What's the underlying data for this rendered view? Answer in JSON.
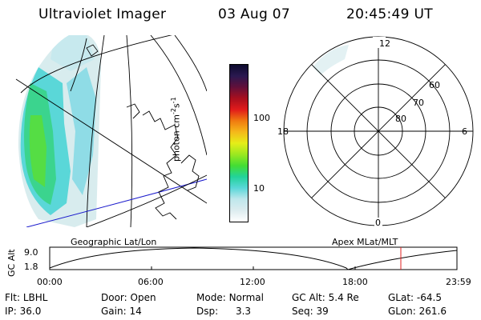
{
  "header": {
    "instrument": "Ultraviolet Imager",
    "date": "03 Aug 07",
    "time": "20:45:49 UT"
  },
  "colorbar": {
    "unit_label": "photon cm",
    "unit_sup1": "-2",
    "unit_mid": "s",
    "unit_sup2": "-1",
    "ticks": [
      {
        "label": "100",
        "value": 100
      },
      {
        "label": "10",
        "value": 10
      }
    ],
    "colors": [
      "#ffffff",
      "#dcecef",
      "#bfe7ec",
      "#5ad7d8",
      "#22d39a",
      "#44dd33",
      "#9be820",
      "#e6ee18",
      "#f5b81a",
      "#f07a10",
      "#e11b1b",
      "#a80f1e",
      "#62103a",
      "#2a1850",
      "#0d0a2e"
    ]
  },
  "polar_plot": {
    "mlt_labels": {
      "top": "12",
      "left": "18",
      "right": "6",
      "bottom": "0"
    },
    "lat_labels": [
      "60",
      "70",
      "80"
    ]
  },
  "altitude_plot": {
    "left_title": "Geographic Lat/Lon",
    "right_title": "Apex MLat/MLT",
    "ylabel": "GC Alt",
    "yticks": [
      "9.0",
      "1.8"
    ],
    "xticks": [
      "00:00",
      "06:00",
      "12:00",
      "18:00",
      "23:59"
    ],
    "marker_color": "#e02020"
  },
  "footer": {
    "row1": [
      {
        "key": "Flt:",
        "value": "LBHL"
      },
      {
        "key": "Door:",
        "value": "Open"
      },
      {
        "key": "Mode:",
        "value": "Normal"
      },
      {
        "key": "GC Alt:",
        "value": "5.4 Re"
      },
      {
        "key": "GLat:",
        "value": "-64.5"
      }
    ],
    "row2": [
      {
        "key": "IP:",
        "value": "36.0"
      },
      {
        "key": "Gain:",
        "value": "14"
      },
      {
        "key": "Dsp:",
        "value": "3.3"
      },
      {
        "key": "Seq:",
        "value": "39"
      },
      {
        "key": "GLon:",
        "value": "261.6"
      }
    ]
  }
}
